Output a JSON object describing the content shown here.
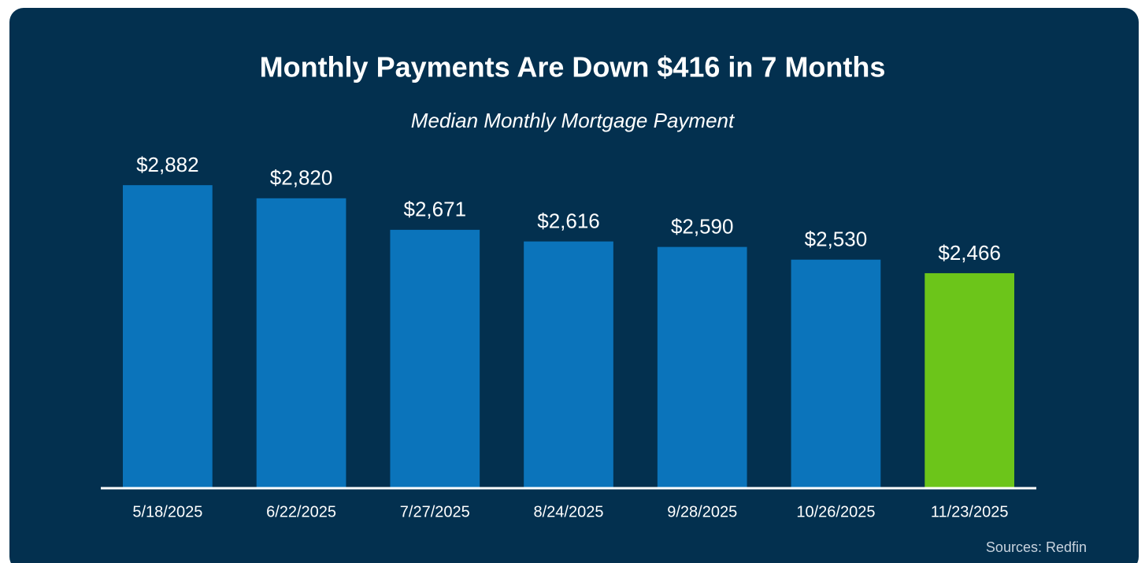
{
  "chart_data": {
    "type": "bar",
    "title": "Monthly Payments Are Down $416 in 7 Months",
    "subtitle": "Median Monthly Mortgage Payment",
    "categories": [
      "5/18/2025",
      "6/22/2025",
      "7/27/2025",
      "8/24/2025",
      "9/28/2025",
      "10/26/2025",
      "11/23/2025"
    ],
    "values": [
      2882,
      2820,
      2671,
      2616,
      2590,
      2530,
      2466
    ],
    "value_labels": [
      "$2,882",
      "$2,820",
      "$2,671",
      "$2,616",
      "$2,590",
      "$2,530",
      "$2,466"
    ],
    "colors": [
      "#0b74bb",
      "#0b74bb",
      "#0b74bb",
      "#0b74bb",
      "#0b74bb",
      "#0b74bb",
      "#6cc51a"
    ],
    "ylim": [
      1450,
      3050
    ],
    "source": "Sources: Redfin"
  }
}
